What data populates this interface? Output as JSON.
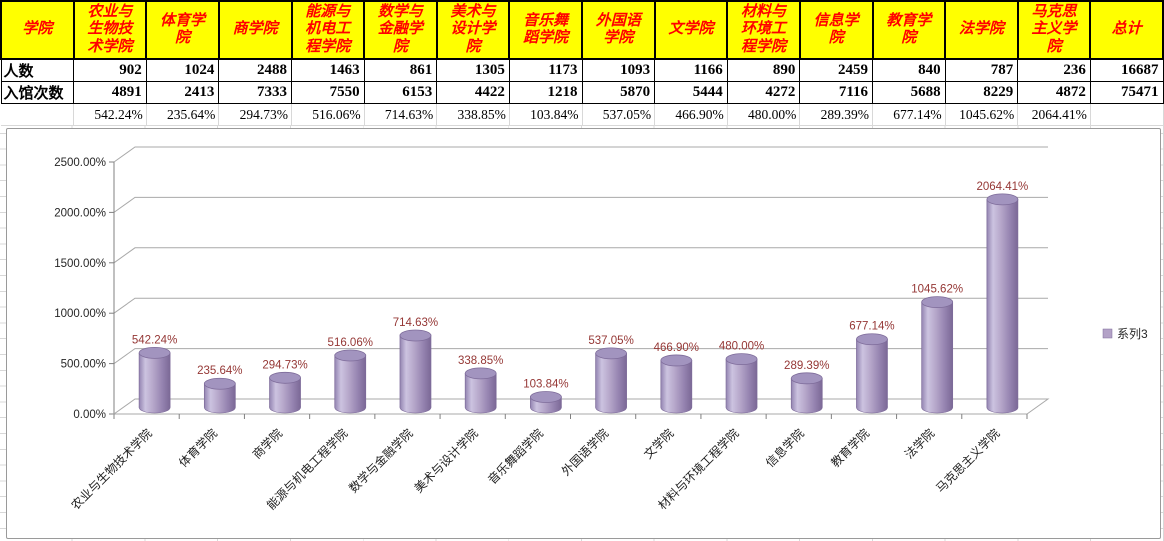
{
  "table": {
    "corner_label": "学院",
    "row_labels": [
      "人数",
      "入馆次数",
      ""
    ],
    "columns": [
      {
        "name": "农业与生物技术学院",
        "people": "902",
        "visits": "4891",
        "ratio": "542.24%"
      },
      {
        "name": "体育学院",
        "people": "1024",
        "visits": "2413",
        "ratio": "235.64%"
      },
      {
        "name": "商学院",
        "people": "2488",
        "visits": "7333",
        "ratio": "294.73%"
      },
      {
        "name": "能源与机电工程学院",
        "people": "1463",
        "visits": "7550",
        "ratio": "516.06%"
      },
      {
        "name": "数学与金融学院",
        "people": "861",
        "visits": "6153",
        "ratio": "714.63%"
      },
      {
        "name": "美术与设计学院",
        "people": "1305",
        "visits": "4422",
        "ratio": "338.85%"
      },
      {
        "name": "音乐舞蹈学院",
        "people": "1173",
        "visits": "1218",
        "ratio": "103.84%"
      },
      {
        "name": "外国语学院",
        "people": "1093",
        "visits": "5870",
        "ratio": "537.05%"
      },
      {
        "name": "文学院",
        "people": "1166",
        "visits": "5444",
        "ratio": "466.90%"
      },
      {
        "name": "材料与环境工程学院",
        "people": "890",
        "visits": "4272",
        "ratio": "480.00%"
      },
      {
        "name": "信息学院",
        "people": "2459",
        "visits": "7116",
        "ratio": "289.39%"
      },
      {
        "name": "教育学院",
        "people": "840",
        "visits": "5688",
        "ratio": "677.14%"
      },
      {
        "name": "法学院",
        "people": "787",
        "visits": "8229",
        "ratio": "1045.62%"
      },
      {
        "name": "马克思主义学院",
        "people": "236",
        "visits": "4872",
        "ratio": "2064.41%"
      },
      {
        "name": "总计",
        "people": "16687",
        "visits": "75471",
        "ratio": ""
      }
    ]
  },
  "chart_data": {
    "type": "bar",
    "subtype": "3d-cylinder",
    "title": "",
    "categories": [
      "农业与生物技术学院",
      "体育学院",
      "商学院",
      "能源与机电工程学院",
      "数学与金融学院",
      "美术与设计学院",
      "音乐舞蹈学院",
      "外国语学院",
      "文学院",
      "材料与环境工程学院",
      "信息学院",
      "教育学院",
      "法学院",
      "马克思主义学院"
    ],
    "series": [
      {
        "name": "系列3",
        "values": [
          542.24,
          235.64,
          294.73,
          516.06,
          714.63,
          338.85,
          103.84,
          537.05,
          466.9,
          480.0,
          289.39,
          677.14,
          1045.62,
          2064.41
        ]
      }
    ],
    "data_labels": [
      "542.24%",
      "235.64%",
      "294.73%",
      "516.06%",
      "714.63%",
      "338.85%",
      "103.84%",
      "537.05%",
      "466.90%",
      "480.00%",
      "289.39%",
      "677.14%",
      "1045.62%",
      "2064.41%"
    ],
    "y_ticks": [
      "0.00%",
      "500.00%",
      "1000.00%",
      "1500.00%",
      "2000.00%",
      "2500.00%"
    ],
    "ylim": [
      0,
      2500
    ],
    "grid": true,
    "legend_position": "right",
    "legend_label": "系列3",
    "colors": {
      "bar": "#b3a2c7",
      "bar_edge": "#7e6c9a",
      "bar_top": "#a294bf",
      "data_label": "#953735",
      "gridline": "#a9a9a9",
      "axis": "#808080",
      "header_bg": "#ffff00",
      "header_text": "#ff0000"
    }
  }
}
